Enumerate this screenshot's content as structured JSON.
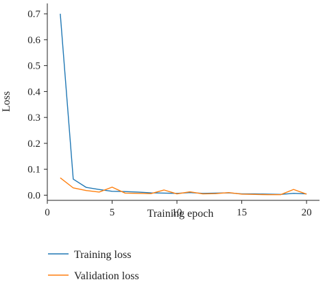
{
  "chart_data": {
    "type": "line",
    "xlabel": "Training epoch",
    "ylabel": "Loss",
    "xlim": [
      0,
      21
    ],
    "ylim": [
      -0.02,
      0.74
    ],
    "xticks": [
      0,
      5,
      10,
      15,
      20
    ],
    "yticks": [
      0.0,
      0.1,
      0.2,
      0.3,
      0.4,
      0.5,
      0.6,
      0.7
    ],
    "grid": false,
    "legend_position": "bottom-left",
    "x": [
      1,
      2,
      3,
      4,
      5,
      6,
      7,
      8,
      9,
      10,
      11,
      12,
      13,
      14,
      15,
      16,
      17,
      18,
      19,
      20
    ],
    "series": [
      {
        "name": "Training loss",
        "color": "#1f77b4",
        "values": [
          0.7,
          0.062,
          0.03,
          0.022,
          0.015,
          0.014,
          0.012,
          0.009,
          0.008,
          0.007,
          0.01,
          0.007,
          0.008,
          0.009,
          0.005,
          0.005,
          0.004,
          0.003,
          0.007,
          0.005
        ]
      },
      {
        "name": "Validation loss",
        "color": "#ff7f0e",
        "values": [
          0.067,
          0.028,
          0.018,
          0.012,
          0.031,
          0.008,
          0.007,
          0.006,
          0.02,
          0.005,
          0.013,
          0.005,
          0.006,
          0.01,
          0.004,
          0.003,
          0.002,
          0.002,
          0.022,
          0.004
        ]
      }
    ]
  }
}
